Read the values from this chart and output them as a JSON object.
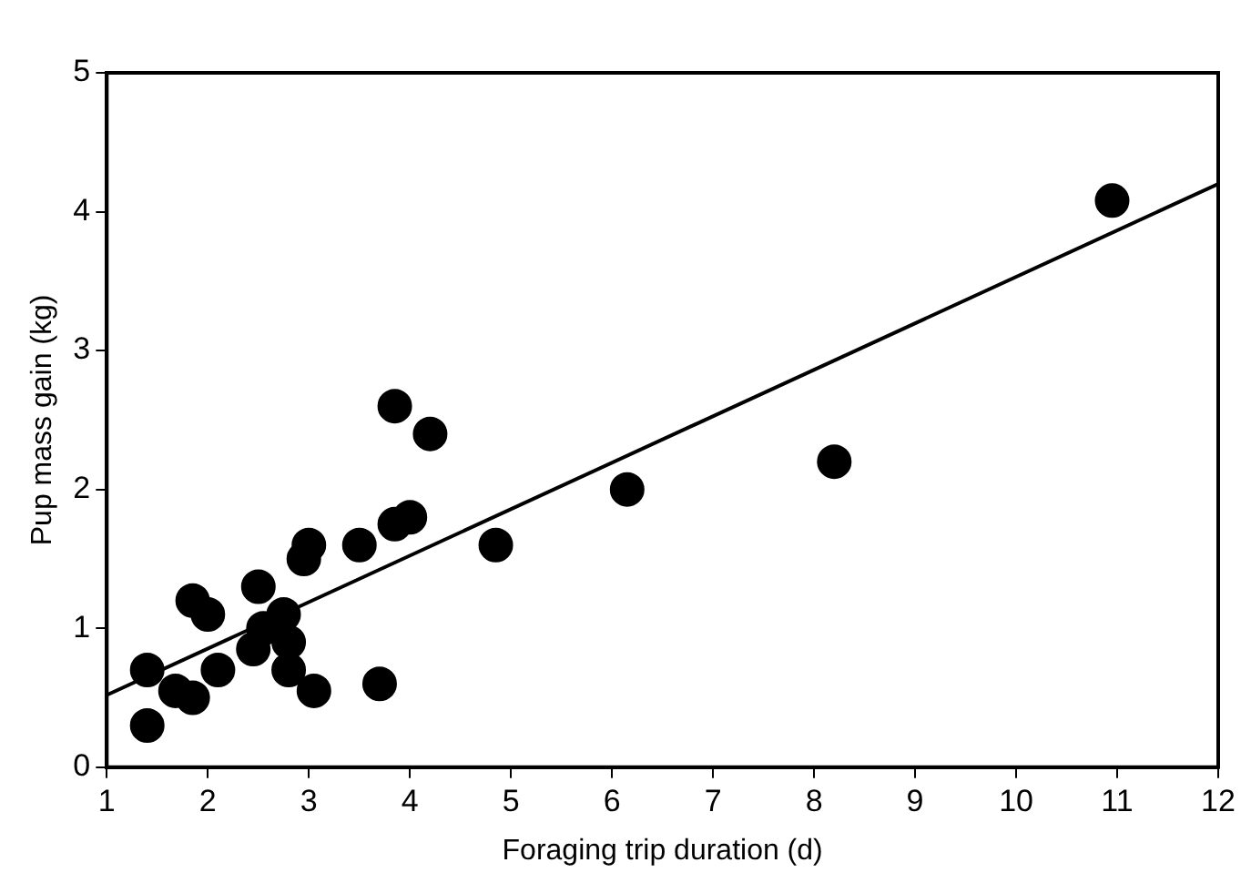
{
  "chart_data": {
    "type": "scatter",
    "xlabel": "Foraging trip duration (d)",
    "ylabel": "Pup mass gain (kg)",
    "xlim": [
      1,
      12
    ],
    "xticks": [
      1,
      2,
      3,
      4,
      5,
      6,
      7,
      8,
      9,
      10,
      11,
      12
    ],
    "ylim": [
      0,
      5
    ],
    "yticks": [
      0,
      1,
      2,
      3,
      4,
      5
    ],
    "grid": false,
    "legend": false,
    "series": [
      {
        "color": "#000000",
        "marker": "circle",
        "x": [
          1.4,
          1.4,
          1.68,
          1.85,
          1.85,
          2.0,
          2.1,
          2.45,
          2.55,
          2.5,
          2.75,
          2.8,
          2.8,
          2.95,
          3.0,
          3.05,
          3.5,
          3.7,
          3.85,
          3.85,
          4.0,
          4.2,
          4.85,
          6.15,
          8.2,
          10.95
        ],
        "values": [
          0.7,
          0.3,
          0.55,
          0.5,
          1.2,
          1.1,
          0.7,
          0.85,
          1.0,
          1.3,
          1.1,
          0.9,
          0.7,
          1.5,
          1.6,
          0.55,
          1.6,
          0.6,
          2.6,
          1.75,
          1.8,
          2.4,
          1.6,
          2.0,
          2.2,
          4.08
        ]
      },
      {
        "type": "line",
        "color": "#000000",
        "x": [
          1,
          12
        ],
        "values": [
          0.52,
          4.2
        ]
      }
    ]
  }
}
